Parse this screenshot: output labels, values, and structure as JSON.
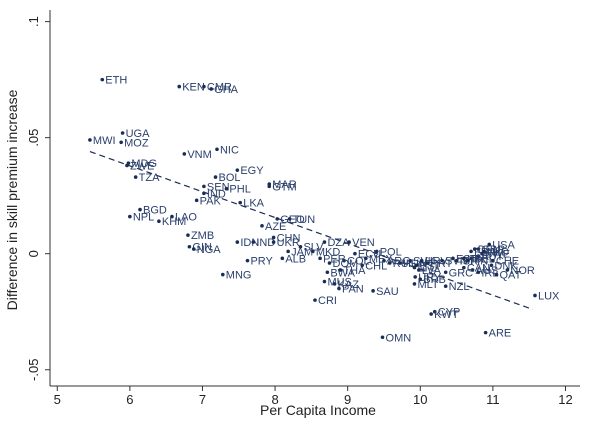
{
  "chart_data": {
    "type": "scatter",
    "title": "",
    "xlabel": "Per Capita Income",
    "ylabel": "Difference in skill premium increase",
    "xlim": [
      4.9,
      12.2
    ],
    "ylim": [
      -0.057,
      0.105
    ],
    "xticks": [
      5,
      6,
      7,
      8,
      9,
      10,
      11,
      12
    ],
    "yticks": [
      -0.05,
      0,
      0.05,
      0.1
    ],
    "ytick_labels": [
      "-.05",
      "0",
      ".05",
      ".1"
    ],
    "grid": false,
    "fit_line": {
      "x": [
        5.45,
        11.55
      ],
      "y": [
        0.044,
        -0.024
      ]
    },
    "points": [
      {
        "label": "ETH",
        "x": 5.62,
        "y": 0.075
      },
      {
        "label": "KEN",
        "x": 6.68,
        "y": 0.072
      },
      {
        "label": "CMR",
        "x": 7.02,
        "y": 0.072
      },
      {
        "label": "GHA",
        "x": 7.12,
        "y": 0.071
      },
      {
        "label": "MWI",
        "x": 5.45,
        "y": 0.049
      },
      {
        "label": "UGA",
        "x": 5.9,
        "y": 0.052
      },
      {
        "label": "MOZ",
        "x": 5.88,
        "y": 0.048
      },
      {
        "label": "VNM",
        "x": 6.75,
        "y": 0.043
      },
      {
        "label": "NIC",
        "x": 7.2,
        "y": 0.045
      },
      {
        "label": "MDG",
        "x": 5.98,
        "y": 0.039
      },
      {
        "label": "ZWE",
        "x": 5.96,
        "y": 0.038
      },
      {
        "label": "EGY",
        "x": 7.48,
        "y": 0.036
      },
      {
        "label": "TZA",
        "x": 6.08,
        "y": 0.033
      },
      {
        "label": "BOL",
        "x": 7.18,
        "y": 0.033
      },
      {
        "label": "MAR",
        "x": 7.92,
        "y": 0.03
      },
      {
        "label": "GTM",
        "x": 7.92,
        "y": 0.029
      },
      {
        "label": "SEN",
        "x": 7.02,
        "y": 0.029
      },
      {
        "label": "PHL",
        "x": 7.33,
        "y": 0.028
      },
      {
        "label": "IND",
        "x": 7.02,
        "y": 0.026
      },
      {
        "label": "PAK",
        "x": 6.92,
        "y": 0.023
      },
      {
        "label": "LKA",
        "x": 7.52,
        "y": 0.022
      },
      {
        "label": "BGD",
        "x": 6.14,
        "y": 0.019
      },
      {
        "label": "NPL",
        "x": 6.0,
        "y": 0.016
      },
      {
        "label": "LAO",
        "x": 6.58,
        "y": 0.016
      },
      {
        "label": "KHM",
        "x": 6.4,
        "y": 0.014
      },
      {
        "label": "GEO",
        "x": 8.03,
        "y": 0.015
      },
      {
        "label": "TUN",
        "x": 8.2,
        "y": 0.015
      },
      {
        "label": "AZE",
        "x": 7.82,
        "y": 0.012
      },
      {
        "label": "CHN",
        "x": 7.98,
        "y": 0.007
      },
      {
        "label": "ZMB",
        "x": 6.8,
        "y": 0.008
      },
      {
        "label": "IDN",
        "x": 7.48,
        "y": 0.005
      },
      {
        "label": "IND",
        "x": 7.7,
        "y": 0.005
      },
      {
        "label": "UKR",
        "x": 7.98,
        "y": 0.005
      },
      {
        "label": "GIN",
        "x": 6.82,
        "y": 0.003
      },
      {
        "label": "NGA",
        "x": 6.88,
        "y": 0.002
      },
      {
        "label": "PRY",
        "x": 7.62,
        "y": -0.003
      },
      {
        "label": "MNG",
        "x": 7.28,
        "y": -0.009
      },
      {
        "label": "JAM",
        "x": 8.18,
        "y": 0.001
      },
      {
        "label": "ALB",
        "x": 8.1,
        "y": -0.002
      },
      {
        "label": "SLV",
        "x": 8.35,
        "y": 0.003
      },
      {
        "label": "DZA",
        "x": 8.68,
        "y": 0.005
      },
      {
        "label": "VEN",
        "x": 9.02,
        "y": 0.005
      },
      {
        "label": "MKD",
        "x": 8.52,
        "y": 0.001
      },
      {
        "label": "PER",
        "x": 8.62,
        "y": -0.002
      },
      {
        "label": "COL",
        "x": 8.95,
        "y": -0.003
      },
      {
        "label": "ECU",
        "x": 9.1,
        "y": 0.0
      },
      {
        "label": "DOM",
        "x": 8.75,
        "y": -0.004
      },
      {
        "label": "THA",
        "x": 8.9,
        "y": -0.007
      },
      {
        "label": "BWA",
        "x": 8.72,
        "y": -0.008
      },
      {
        "label": "MUS",
        "x": 8.68,
        "y": -0.012
      },
      {
        "label": "KAZ",
        "x": 8.82,
        "y": -0.013
      },
      {
        "label": "PAN",
        "x": 8.88,
        "y": -0.015
      },
      {
        "label": "SAU",
        "x": 9.35,
        "y": -0.016
      },
      {
        "label": "CRI",
        "x": 8.55,
        "y": -0.02
      },
      {
        "label": "POL",
        "x": 9.4,
        "y": 0.001
      },
      {
        "label": "CHL",
        "x": 9.2,
        "y": -0.005
      },
      {
        "label": "MEX",
        "x": 9.25,
        "y": -0.002
      },
      {
        "label": "ARG",
        "x": 9.5,
        "y": -0.003
      },
      {
        "label": "RUS",
        "x": 9.58,
        "y": -0.004
      },
      {
        "label": "HUN",
        "x": 9.72,
        "y": -0.004
      },
      {
        "label": "SVK",
        "x": 9.86,
        "y": -0.003
      },
      {
        "label": "EST",
        "x": 9.95,
        "y": -0.005
      },
      {
        "label": "HRV",
        "x": 10.02,
        "y": -0.003
      },
      {
        "label": "PRT",
        "x": 10.1,
        "y": -0.004
      },
      {
        "label": "SVN",
        "x": 10.3,
        "y": -0.003
      },
      {
        "label": "ESP",
        "x": 10.45,
        "y": -0.002
      },
      {
        "label": "ISR",
        "x": 10.5,
        "y": -0.003
      },
      {
        "label": "ITA",
        "x": 10.6,
        "y": -0.002
      },
      {
        "label": "FRA",
        "x": 10.7,
        "y": 0.001
      },
      {
        "label": "GBR",
        "x": 10.8,
        "y": 0.002
      },
      {
        "label": "USA",
        "x": 10.95,
        "y": 0.004
      },
      {
        "label": "DEU",
        "x": 10.75,
        "y": 0.002
      },
      {
        "label": "NLD",
        "x": 10.88,
        "y": 0.001
      },
      {
        "label": "SWE",
        "x": 10.85,
        "y": 0.0
      },
      {
        "label": "AUT",
        "x": 10.8,
        "y": -0.001
      },
      {
        "label": "BEL",
        "x": 10.7,
        "y": -0.002
      },
      {
        "label": "FIN",
        "x": 10.65,
        "y": -0.003
      },
      {
        "label": "CHE",
        "x": 11.0,
        "y": -0.003
      },
      {
        "label": "CAN",
        "x": 10.6,
        "y": -0.006
      },
      {
        "label": "AUS",
        "x": 10.72,
        "y": -0.007
      },
      {
        "label": "DNK",
        "x": 10.98,
        "y": -0.005
      },
      {
        "label": "IRL",
        "x": 10.8,
        "y": -0.008
      },
      {
        "label": "NOR",
        "x": 11.2,
        "y": -0.007
      },
      {
        "label": "QAT",
        "x": 11.05,
        "y": -0.009
      },
      {
        "label": "GRC",
        "x": 10.35,
        "y": -0.008
      },
      {
        "label": "LTU",
        "x": 9.92,
        "y": -0.006
      },
      {
        "label": "LVA",
        "x": 9.98,
        "y": -0.007
      },
      {
        "label": "URY",
        "x": 9.93,
        "y": -0.01
      },
      {
        "label": "BRB",
        "x": 10.0,
        "y": -0.011
      },
      {
        "label": "MLT",
        "x": 9.92,
        "y": -0.013
      },
      {
        "label": "NZL",
        "x": 10.35,
        "y": -0.014
      },
      {
        "label": "LUX",
        "x": 11.58,
        "y": -0.018
      },
      {
        "label": "CYP",
        "x": 10.2,
        "y": -0.025
      },
      {
        "label": "KWT",
        "x": 10.15,
        "y": -0.026
      },
      {
        "label": "ARE",
        "x": 10.9,
        "y": -0.034
      },
      {
        "label": "OMN",
        "x": 9.48,
        "y": -0.036
      }
    ]
  }
}
